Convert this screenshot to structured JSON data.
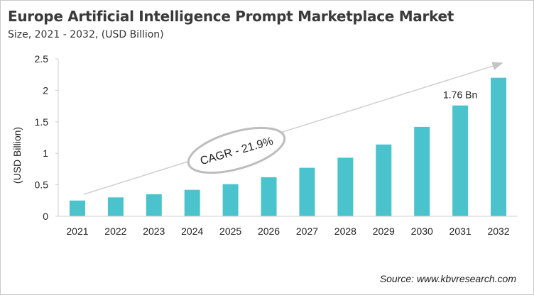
{
  "title": "Europe Artificial Intelligence Prompt Marketplace Market",
  "subtitle": "Size, 2021 - 2032, (USD Billion)",
  "source": "Source: www.kbvresearch.com",
  "chart_data": {
    "type": "bar",
    "categories": [
      "2021",
      "2022",
      "2023",
      "2024",
      "2025",
      "2026",
      "2027",
      "2028",
      "2029",
      "2030",
      "2031",
      "2032"
    ],
    "values": [
      0.25,
      0.3,
      0.35,
      0.42,
      0.51,
      0.62,
      0.77,
      0.93,
      1.14,
      1.42,
      1.76,
      2.2
    ],
    "ylabel": "(USD Billion)",
    "xlabel": "",
    "ylim": [
      0,
      2.5
    ],
    "yticks": [
      "0",
      "0.5",
      "1",
      "1.5",
      "2",
      "2.5"
    ],
    "grid": false,
    "bar_color": "#4bc3cc",
    "annotations": {
      "cagr": "CAGR - 21.9%",
      "data_label": "1.76 Bn",
      "data_label_category": "2031"
    }
  }
}
